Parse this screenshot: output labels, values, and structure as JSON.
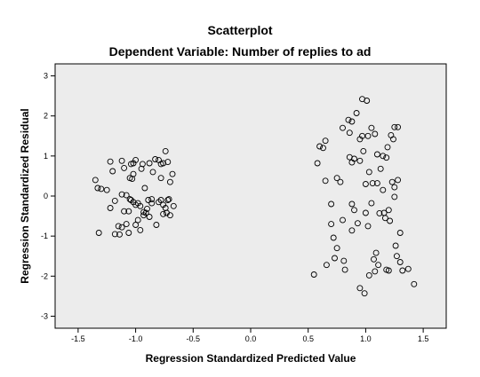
{
  "chart_data": {
    "type": "scatter",
    "title": "Scatterplot",
    "subtitle": "Dependent Variable: Number of replies to ad",
    "xlabel": "Regression Standardized Predicted Value",
    "ylabel": "Regression Standardized Residual",
    "xlim": [
      -1.7,
      1.7
    ],
    "ylim": [
      -3.3,
      3.3
    ],
    "xticks": [
      -1.5,
      -1.0,
      -0.5,
      0.0,
      0.5,
      1.0,
      1.5
    ],
    "xtick_labels": [
      "-1.5",
      "-1.0",
      "-0.5",
      "0.0",
      "0.5",
      "1.0",
      "1.5"
    ],
    "yticks": [
      -3,
      -2,
      -1,
      0,
      1,
      2,
      3
    ],
    "ytick_labels": [
      "-3",
      "-2",
      "-1",
      "0",
      "1",
      "2",
      "3"
    ],
    "grid": false,
    "plot_background": "#ececec",
    "marker_color": "#000000",
    "points": [
      [
        -1.35,
        0.4
      ],
      [
        -1.33,
        0.2
      ],
      [
        -1.3,
        0.18
      ],
      [
        -1.32,
        -0.92
      ],
      [
        -1.22,
        0.86
      ],
      [
        -1.2,
        0.62
      ],
      [
        -1.25,
        0.15
      ],
      [
        -1.18,
        -0.12
      ],
      [
        -1.22,
        -0.3
      ],
      [
        -1.15,
        -0.75
      ],
      [
        -1.18,
        -0.95
      ],
      [
        -1.12,
        0.88
      ],
      [
        -1.1,
        0.7
      ],
      [
        -1.12,
        0.04
      ],
      [
        -1.08,
        0.02
      ],
      [
        -1.1,
        -0.38
      ],
      [
        -1.06,
        -0.38
      ],
      [
        -1.08,
        -0.7
      ],
      [
        -1.12,
        -0.78
      ],
      [
        -1.14,
        -0.96
      ],
      [
        -1.06,
        -0.92
      ],
      [
        -1.05,
        0.45
      ],
      [
        -1.03,
        0.43
      ],
      [
        -1.04,
        0.8
      ],
      [
        -1.02,
        0.82
      ],
      [
        -1.0,
        0.9
      ],
      [
        -1.02,
        0.55
      ],
      [
        -1.04,
        -0.1
      ],
      [
        -1.02,
        -0.15
      ],
      [
        -1.05,
        -0.08
      ],
      [
        -1.0,
        -0.22
      ],
      [
        -0.98,
        -0.18
      ],
      [
        -0.96,
        -0.25
      ],
      [
        -0.98,
        -0.6
      ],
      [
        -1.0,
        -0.72
      ],
      [
        -0.96,
        -0.85
      ],
      [
        -0.94,
        0.8
      ],
      [
        -0.95,
        0.68
      ],
      [
        -0.93,
        -0.4
      ],
      [
        -0.91,
        -0.42
      ],
      [
        -0.93,
        -0.48
      ],
      [
        -0.9,
        -0.32
      ],
      [
        -0.89,
        -0.1
      ],
      [
        -0.92,
        0.2
      ],
      [
        -0.88,
        0.82
      ],
      [
        -0.85,
        0.6
      ],
      [
        -0.86,
        -0.18
      ],
      [
        -0.86,
        -0.08
      ],
      [
        -0.88,
        -0.52
      ],
      [
        -0.8,
        0.9
      ],
      [
        -0.83,
        0.92
      ],
      [
        -0.78,
        0.8
      ],
      [
        -0.76,
        0.82
      ],
      [
        -0.74,
        1.12
      ],
      [
        -0.72,
        0.85
      ],
      [
        -0.78,
        0.45
      ],
      [
        -0.8,
        -0.15
      ],
      [
        -0.78,
        -0.1
      ],
      [
        -0.76,
        -0.22
      ],
      [
        -0.74,
        -0.3
      ],
      [
        -0.73,
        -0.42
      ],
      [
        -0.72,
        -0.1
      ],
      [
        -0.7,
        -0.48
      ],
      [
        -0.71,
        -0.08
      ],
      [
        -0.76,
        -0.45
      ],
      [
        -0.82,
        -0.72
      ],
      [
        -0.68,
        0.55
      ],
      [
        -0.7,
        0.35
      ],
      [
        -0.67,
        -0.25
      ],
      [
        0.55,
        -1.96
      ],
      [
        0.58,
        0.82
      ],
      [
        0.6,
        1.24
      ],
      [
        0.63,
        1.2
      ],
      [
        0.65,
        1.38
      ],
      [
        0.65,
        0.38
      ],
      [
        0.66,
        -1.72
      ],
      [
        0.7,
        -0.2
      ],
      [
        0.7,
        -0.7
      ],
      [
        0.72,
        -1.04
      ],
      [
        0.73,
        -1.55
      ],
      [
        0.75,
        -1.3
      ],
      [
        0.75,
        0.45
      ],
      [
        0.78,
        0.35
      ],
      [
        0.8,
        1.7
      ],
      [
        0.8,
        -0.6
      ],
      [
        0.81,
        -1.62
      ],
      [
        0.82,
        -1.84
      ],
      [
        0.85,
        1.9
      ],
      [
        0.86,
        1.58
      ],
      [
        0.86,
        0.97
      ],
      [
        0.88,
        0.84
      ],
      [
        0.88,
        1.86
      ],
      [
        0.88,
        -0.2
      ],
      [
        0.88,
        -0.86
      ],
      [
        0.9,
        -0.35
      ],
      [
        0.9,
        0.93
      ],
      [
        0.92,
        2.07
      ],
      [
        0.93,
        -0.68
      ],
      [
        0.95,
        0.88
      ],
      [
        0.95,
        1.42
      ],
      [
        0.95,
        -2.3
      ],
      [
        0.97,
        2.42
      ],
      [
        0.97,
        1.5
      ],
      [
        0.99,
        -2.43
      ],
      [
        1.0,
        0.3
      ],
      [
        1.0,
        -0.42
      ],
      [
        1.01,
        2.38
      ],
      [
        1.02,
        1.5
      ],
      [
        1.02,
        -0.75
      ],
      [
        1.03,
        -1.98
      ],
      [
        1.03,
        0.6
      ],
      [
        1.05,
        1.7
      ],
      [
        1.06,
        0.32
      ],
      [
        1.07,
        -1.58
      ],
      [
        1.08,
        1.55
      ],
      [
        1.09,
        -1.42
      ],
      [
        1.1,
        1.04
      ],
      [
        1.1,
        0.32
      ],
      [
        1.11,
        -1.72
      ],
      [
        1.12,
        -0.43
      ],
      [
        1.13,
        0.68
      ],
      [
        1.15,
        1.0
      ],
      [
        1.16,
        -0.42
      ],
      [
        1.17,
        -0.55
      ],
      [
        1.18,
        0.96
      ],
      [
        1.19,
        1.22
      ],
      [
        1.2,
        -1.86
      ],
      [
        1.21,
        -0.62
      ],
      [
        1.22,
        1.52
      ],
      [
        1.23,
        0.35
      ],
      [
        1.24,
        1.42
      ],
      [
        1.25,
        1.72
      ],
      [
        1.25,
        0.22
      ],
      [
        1.26,
        -1.24
      ],
      [
        1.27,
        -1.5
      ],
      [
        1.28,
        1.72
      ],
      [
        1.28,
        0.4
      ],
      [
        1.3,
        -1.65
      ],
      [
        1.3,
        -0.92
      ],
      [
        1.32,
        -1.86
      ],
      [
        1.37,
        -1.82
      ],
      [
        1.42,
        -2.2
      ],
      [
        1.25,
        -0.02
      ],
      [
        1.15,
        0.15
      ],
      [
        1.05,
        -0.18
      ],
      [
        1.2,
        -0.35
      ],
      [
        1.08,
        -1.88
      ],
      [
        1.18,
        -1.84
      ],
      [
        0.98,
        1.12
      ]
    ]
  }
}
